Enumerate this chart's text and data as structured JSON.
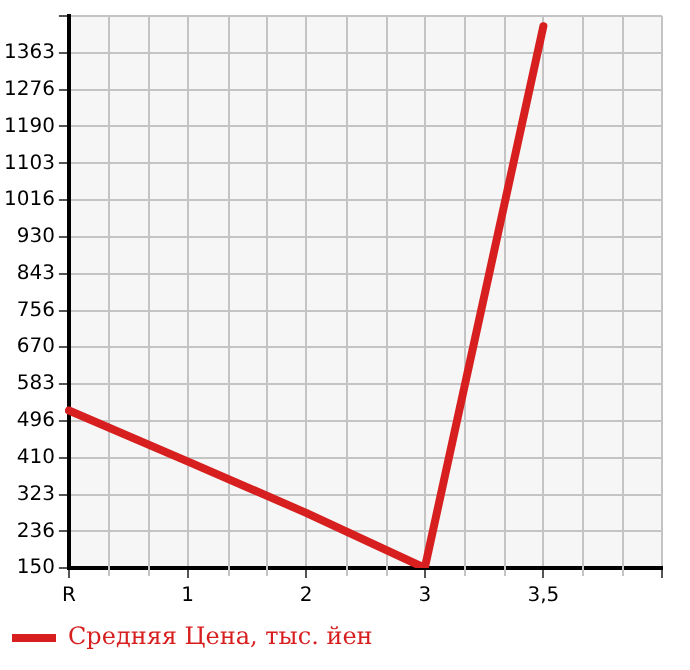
{
  "chart_data": {
    "type": "line",
    "categories": [
      "R",
      "1",
      "2",
      "3",
      "3,5",
      null
    ],
    "series": [
      {
        "name": "Средняя Цена, тыс. йен",
        "color": "#d71f1f",
        "values": [
          521,
          401,
          280,
          150,
          1426,
          null
        ]
      }
    ],
    "ylim": [
      150,
      1450
    ],
    "yticks": [
      150,
      236,
      323,
      410,
      496,
      583,
      670,
      756,
      843,
      930,
      1016,
      1103,
      1190,
      1276,
      1363
    ],
    "grid": true,
    "legend": "bottom",
    "marker": "none",
    "line_style": "solid"
  }
}
